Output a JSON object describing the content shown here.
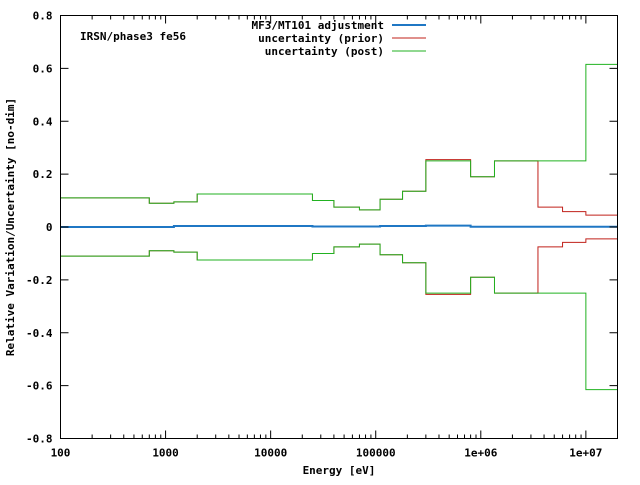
{
  "chart_data": {
    "type": "line",
    "annotation": "IRSN/phase3 fe56",
    "xlabel": "Energy [eV]",
    "ylabel": "Relative Variation/Uncertainty [no-dim]",
    "x_scale": "log",
    "xlim": [
      100,
      20000000
    ],
    "ylim": [
      -0.8,
      0.8
    ],
    "grid": false,
    "legend_position": "top-center",
    "x_ticks": [
      {
        "value": 100,
        "label": "100"
      },
      {
        "value": 1000,
        "label": "1000"
      },
      {
        "value": 10000,
        "label": "10000"
      },
      {
        "value": 100000,
        "label": "100000"
      },
      {
        "value": 1000000,
        "label": "1e+06"
      },
      {
        "value": 10000000,
        "label": "1e+07"
      }
    ],
    "y_ticks": [
      {
        "value": -0.8,
        "label": "-0.8"
      },
      {
        "value": -0.6,
        "label": "-0.6"
      },
      {
        "value": -0.4,
        "label": "-0.4"
      },
      {
        "value": -0.2,
        "label": "-0.2"
      },
      {
        "value": 0,
        "label": "0"
      },
      {
        "value": 0.2,
        "label": "0.2"
      },
      {
        "value": 0.4,
        "label": "0.4"
      },
      {
        "value": 0.6,
        "label": "0.6"
      },
      {
        "value": 0.8,
        "label": "0.8"
      }
    ],
    "bin_edges": [
      100,
      700,
      1200,
      2000,
      25000,
      40000,
      70000,
      110000,
      180000,
      300000,
      500000,
      800000,
      1350000,
      3500000,
      6000000,
      10000000,
      20000000
    ],
    "series": [
      {
        "name": "MF3/MT101 adjustment",
        "color": "#1f77c4",
        "values": [
          0,
          0,
          0.004,
          0.004,
          0.002,
          0.002,
          0.002,
          0.004,
          0.004,
          0.005,
          0.005,
          0.001,
          0.001,
          0.001,
          0.001,
          0.001
        ],
        "mirrored": false
      },
      {
        "name": "uncertainty (prior)",
        "color": "#c0201a",
        "values": [
          0.11,
          0.09,
          0.095,
          0.125,
          0.1,
          0.075,
          0.065,
          0.105,
          0.135,
          0.255,
          0.255,
          0.19,
          0.25,
          0.075,
          0.058,
          0.045
        ],
        "mirrored": true
      },
      {
        "name": "uncertainty (post)",
        "color": "#21b221",
        "values": [
          0.11,
          0.09,
          0.095,
          0.125,
          0.1,
          0.075,
          0.065,
          0.105,
          0.135,
          0.25,
          0.25,
          0.19,
          0.25,
          0.25,
          0.25,
          0.615
        ],
        "mirrored": true
      }
    ]
  }
}
